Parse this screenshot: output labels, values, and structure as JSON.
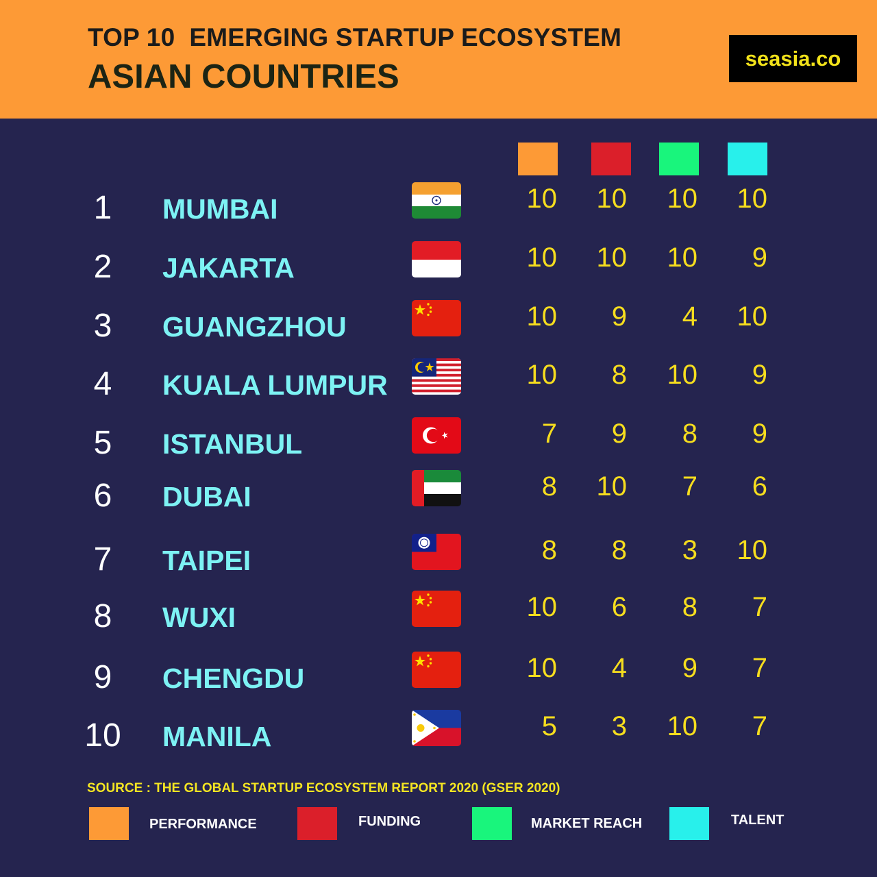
{
  "header": {
    "title_line1": "TOP 10  EMERGING STARTUP ECOSYSTEM",
    "title_line2": "ASIAN COUNTRIES",
    "brand": "seasia.co"
  },
  "colors": {
    "header_bg": "#fd9a36",
    "page_bg": "#25244f",
    "performance": "#fd9a36",
    "funding": "#db1f2a",
    "market_reach": "#19f57c",
    "talent": "#28f0eb",
    "city_text": "#7df2f4",
    "score_text": "#f6dd1e",
    "source_text": "#f4e522"
  },
  "chart_data": {
    "type": "table",
    "columns": [
      "PERFORMANCE",
      "FUNDING",
      "MARKET REACH",
      "TALENT"
    ],
    "rows": [
      {
        "rank": "1",
        "city": "MUMBAI",
        "flag": "india-flag-icon",
        "scores": [
          10,
          10,
          10,
          10
        ]
      },
      {
        "rank": "2",
        "city": "JAKARTA",
        "flag": "indonesia-flag-icon",
        "scores": [
          10,
          10,
          10,
          9
        ]
      },
      {
        "rank": "3",
        "city": "GUANGZHOU",
        "flag": "china-flag-icon",
        "scores": [
          10,
          9,
          4,
          10
        ]
      },
      {
        "rank": "4",
        "city": "KUALA LUMPUR",
        "flag": "malaysia-flag-icon",
        "scores": [
          10,
          8,
          10,
          9
        ]
      },
      {
        "rank": "5",
        "city": "ISTANBUL",
        "flag": "turkey-flag-icon",
        "scores": [
          7,
          9,
          8,
          9
        ]
      },
      {
        "rank": "6",
        "city": "DUBAI",
        "flag": "uae-flag-icon",
        "scores": [
          8,
          10,
          7,
          6
        ]
      },
      {
        "rank": "7",
        "city": "TAIPEI",
        "flag": "taiwan-flag-icon",
        "scores": [
          8,
          8,
          3,
          10
        ]
      },
      {
        "rank": "8",
        "city": "WUXI",
        "flag": "china-flag-icon",
        "scores": [
          10,
          6,
          8,
          7
        ]
      },
      {
        "rank": "9",
        "city": "CHENGDU",
        "flag": "china-flag-icon",
        "scores": [
          10,
          4,
          9,
          7
        ]
      },
      {
        "rank": "10",
        "city": "MANILA",
        "flag": "philippines-flag-icon",
        "scores": [
          5,
          3,
          10,
          7
        ]
      }
    ]
  },
  "source": "SOURCE : THE GLOBAL STARTUP ECOSYSTEM REPORT 2020 (GSER 2020)",
  "legend": [
    {
      "label": "PERFORMANCE",
      "color": "#fd9a36"
    },
    {
      "label": "FUNDING",
      "color": "#db1f2a"
    },
    {
      "label": "MARKET REACH",
      "color": "#19f57c"
    },
    {
      "label": "TALENT",
      "color": "#28f0eb"
    }
  ]
}
